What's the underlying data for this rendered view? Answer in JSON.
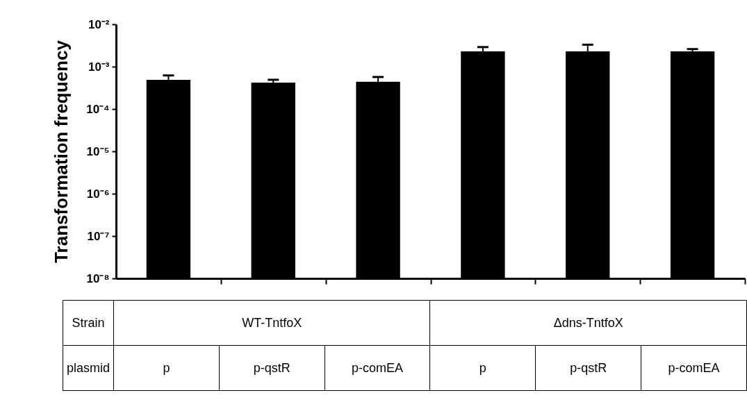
{
  "chart_data": {
    "type": "bar",
    "ylabel": "Transformation frequency",
    "categories": [
      "p",
      "p-qstR",
      "p-comEA",
      "p",
      "p-qstR",
      "p-comEA"
    ],
    "values": [
      0.00049,
      0.00042,
      0.00044,
      0.0023,
      0.0023,
      0.0023
    ],
    "errors": [
      0.00013,
      7e-05,
      0.00013,
      0.0006,
      0.001,
      0.0003
    ],
    "color": "#000000",
    "log": true,
    "ylim": [
      1e-08,
      0.01
    ],
    "yticks": [
      {
        "value": 1e-08,
        "label": "10⁻⁸"
      },
      {
        "value": 1e-07,
        "label": "10⁻⁷"
      },
      {
        "value": 1e-06,
        "label": "10⁻⁶"
      },
      {
        "value": 1e-05,
        "label": "10⁻⁵"
      },
      {
        "value": 0.0001,
        "label": "10⁻⁴"
      },
      {
        "value": 0.001,
        "label": "10⁻³"
      },
      {
        "value": 0.01,
        "label": "10⁻²"
      }
    ],
    "grid": false,
    "tick_labels": "y",
    "annotations": [
      "Strain",
      "WT-TntfoX",
      "Δdns-TntfoX",
      "plasmid"
    ]
  }
}
